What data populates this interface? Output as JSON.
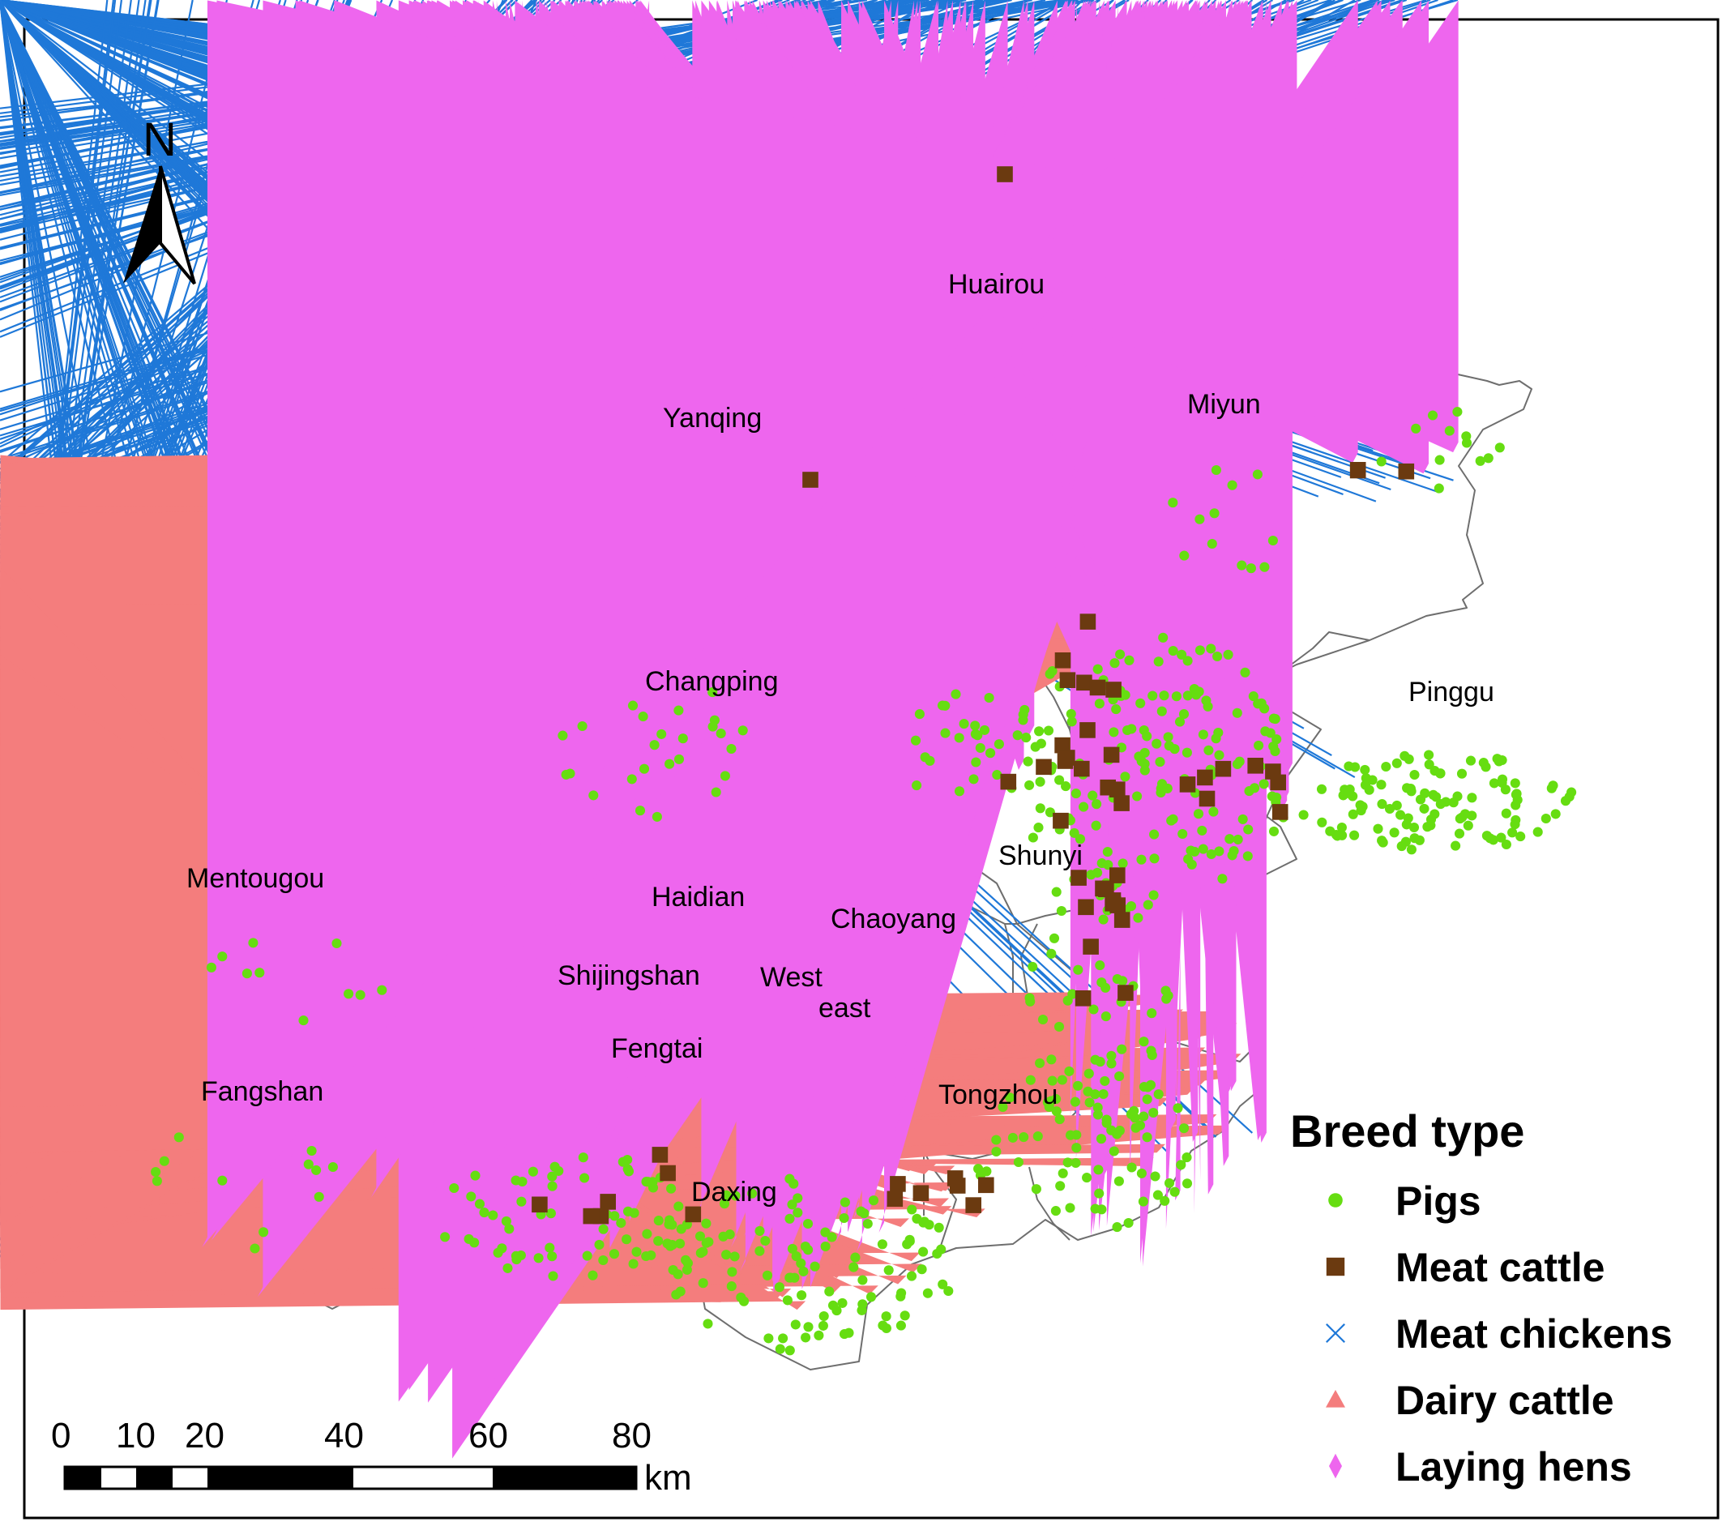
{
  "north_arrow": {
    "label": "N"
  },
  "districts": [
    {
      "name": "Huairou"
    },
    {
      "name": "Miyun"
    },
    {
      "name": "Yanqing"
    },
    {
      "name": "Changping"
    },
    {
      "name": "Pinggu"
    },
    {
      "name": "Shunyi"
    },
    {
      "name": "Mentougou"
    },
    {
      "name": "Haidian"
    },
    {
      "name": "Chaoyang"
    },
    {
      "name": "Shijingshan"
    },
    {
      "name": "West"
    },
    {
      "name": "east"
    },
    {
      "name": "Fengtai"
    },
    {
      "name": "Fangshan"
    },
    {
      "name": "Tongzhou"
    },
    {
      "name": "Daxing"
    }
  ],
  "scale_bar": {
    "ticks": [
      "0",
      "10",
      "20",
      "40",
      "60",
      "80"
    ],
    "unit": "km"
  },
  "legend": {
    "title": "Breed type",
    "items": [
      {
        "key": "pigs",
        "label": "Pigs",
        "color": "#66dd11",
        "marker": "dot"
      },
      {
        "key": "meat_cattle",
        "label": "Meat cattle",
        "color": "#6b3a10",
        "marker": "square"
      },
      {
        "key": "meat_chickens",
        "label": "Meat chickens",
        "color": "#1f78d8",
        "marker": "cross"
      },
      {
        "key": "dairy_cattle",
        "label": "Dairy cattle",
        "color": "#f47d7d",
        "marker": "triangle"
      },
      {
        "key": "laying_hens",
        "label": "Laying hens",
        "color": "#ee66ee",
        "marker": "diamond"
      }
    ]
  },
  "colors": {
    "boundary": "#6e6e6e",
    "frame": "#000000"
  }
}
